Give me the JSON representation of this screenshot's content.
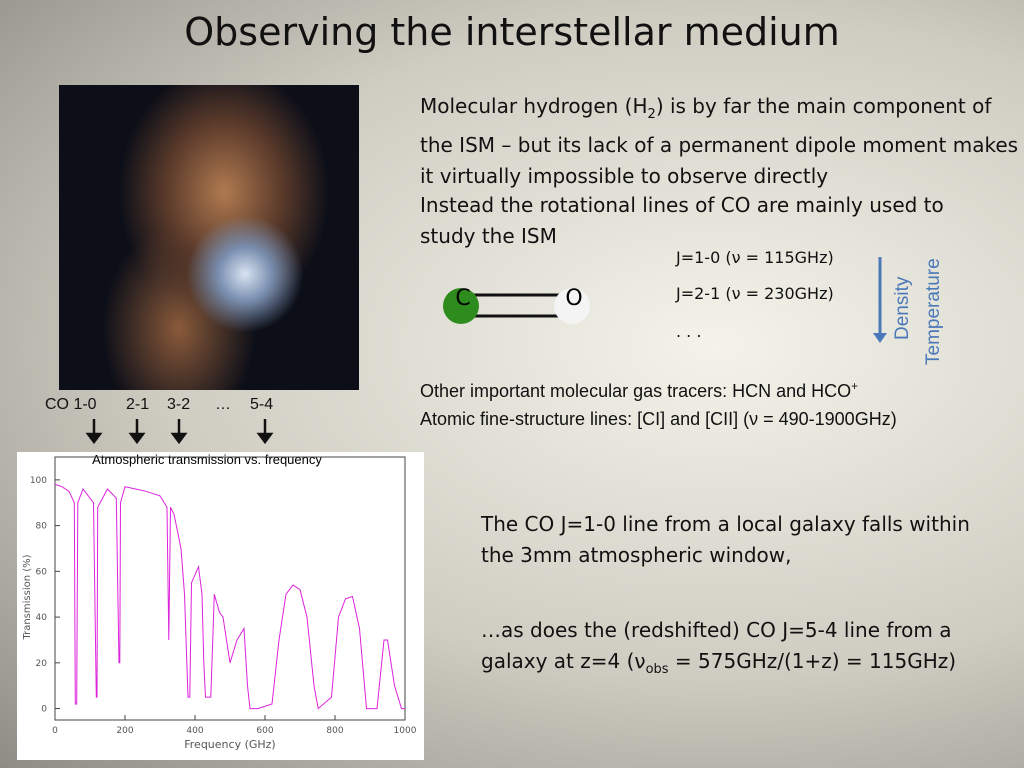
{
  "title": "Observing the interstellar medium",
  "paragraph_1": {
    "pre": "Molecular hydrogen (H",
    "sub": "2",
    "post": ") is by far the main component of the ISM – but its lack of a permanent dipole moment makes it virtually impossible to observe directly"
  },
  "paragraph_2": "Instead the rotational lines of CO are mainly used to study the ISM",
  "molecule": {
    "left_atom": "C",
    "right_atom": "O"
  },
  "transitions": [
    "J=1-0  (ν = 115GHz)",
    "J=2-1  (ν = 230GHz)",
    ". . ."
  ],
  "trend_labels": [
    "Density",
    "Temperature"
  ],
  "tracers": {
    "molecular_pre": "Other important molecular gas tracers:   HCN and HCO",
    "molecular_sup": "+",
    "atomic": "Atomic fine-structure lines:   [CI] and [CII] (ν = 490-1900GHz)"
  },
  "line_markers": [
    "CO 1-0",
    "2-1",
    "3-2",
    "…",
    "5-4"
  ],
  "paragraph_3": "The CO J=1-0 line from a local galaxy falls within the 3mm atmospheric window,",
  "paragraph_4": {
    "pre": "…as does the (redshifted) CO J=5-4  line from a galaxy at z=4  (ν",
    "sub": "obs",
    "post": " = 575GHz/(1+z) = 115GHz)"
  },
  "chart_data": {
    "type": "line",
    "title": "Atmospheric transmission vs. frequency",
    "x_label": "Frequency (GHz)",
    "y_label": "Transmission (%)",
    "color": "#dd22dd",
    "x": [
      0,
      20,
      40,
      55,
      58,
      62,
      65,
      80,
      110,
      118,
      120,
      122,
      150,
      175,
      183,
      185,
      187,
      200,
      230,
      260,
      300,
      320,
      325,
      330,
      340,
      360,
      370,
      380,
      385,
      390,
      410,
      420,
      425,
      430,
      445,
      455,
      470,
      480,
      500,
      520,
      540,
      550,
      557,
      580,
      620,
      640,
      660,
      680,
      700,
      720,
      740,
      752,
      790,
      810,
      830,
      850,
      870,
      890,
      920,
      940,
      950,
      970,
      990,
      1000
    ],
    "values": [
      98,
      97,
      95,
      90,
      2,
      2,
      90,
      96,
      90,
      5,
      5,
      88,
      96,
      92,
      20,
      20,
      90,
      97,
      96,
      95,
      93,
      88,
      30,
      88,
      85,
      70,
      50,
      5,
      5,
      55,
      62,
      50,
      20,
      5,
      5,
      50,
      42,
      40,
      20,
      30,
      35,
      10,
      0,
      0,
      2,
      30,
      50,
      54,
      52,
      40,
      10,
      0,
      5,
      40,
      48,
      49,
      35,
      0,
      0,
      30,
      30,
      10,
      0,
      0
    ],
    "xlim": [
      0,
      1000
    ],
    "ylim": [
      -5,
      110
    ],
    "xticks": [
      0,
      200,
      400,
      600,
      800,
      1000
    ],
    "yticks": [
      0,
      20,
      40,
      60,
      80,
      100
    ]
  }
}
